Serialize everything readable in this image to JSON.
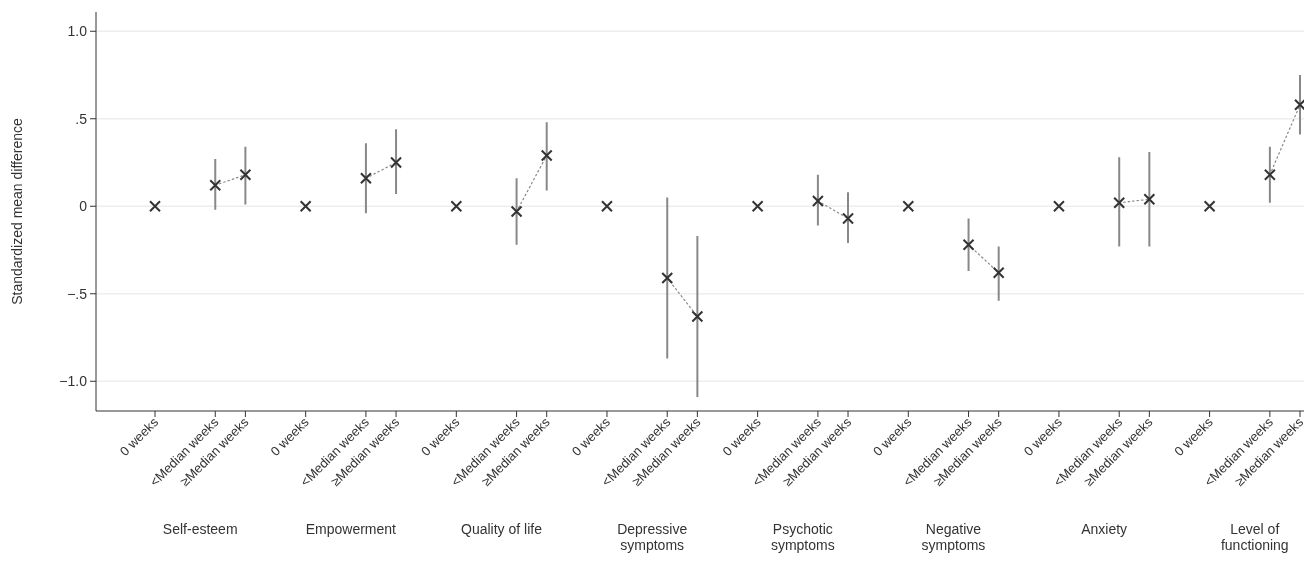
{
  "chart_data": {
    "type": "line",
    "ylabel": "Standardized mean difference",
    "categories": [
      "0 weeks",
      null,
      "<Median weeks",
      "≥Median weeks",
      null,
      "0 weeks",
      null,
      "<Median weeks",
      "≥Median weeks",
      null,
      "0 weeks",
      null,
      "<Median weeks",
      "≥Median weeks",
      null,
      "0 weeks",
      null,
      "<Median weeks",
      "≥Median weeks",
      null,
      "0 weeks",
      null,
      "<Median weeks",
      "≥Median weeks",
      null,
      "0 weeks",
      null,
      "<Median weeks",
      "≥Median weeks",
      null,
      "0 weeks",
      null,
      "<Median weeks",
      "≥Median weeks",
      null,
      "0 weeks",
      null,
      "<Median weeks",
      "≥Median weeks"
    ],
    "series": [
      {
        "color": "#333333",
        "marker": "cross",
        "line_style": "dotted",
        "values": [
          0,
          null,
          0.12,
          0.18,
          null,
          0,
          null,
          0.16,
          0.25,
          null,
          0,
          null,
          -0.03,
          0.29,
          null,
          0,
          null,
          -0.41,
          -0.63,
          null,
          0,
          null,
          0.03,
          -0.07,
          null,
          0,
          null,
          -0.22,
          -0.38,
          null,
          0,
          null,
          0.02,
          0.04,
          null,
          0,
          null,
          0.18,
          0.58
        ],
        "errors": [
          null,
          null,
          [
            -0.02,
            0.27
          ],
          [
            0.01,
            0.34
          ],
          null,
          null,
          null,
          [
            -0.04,
            0.36
          ],
          [
            0.07,
            0.44
          ],
          null,
          null,
          null,
          [
            -0.22,
            0.16
          ],
          [
            0.09,
            0.48
          ],
          null,
          null,
          null,
          [
            -0.87,
            0.05
          ],
          [
            -1.09,
            -0.17
          ],
          null,
          null,
          null,
          [
            -0.11,
            0.18
          ],
          [
            -0.21,
            0.08
          ],
          null,
          null,
          null,
          [
            -0.37,
            -0.07
          ],
          [
            -0.54,
            -0.23
          ],
          null,
          null,
          null,
          [
            -0.23,
            0.28
          ],
          [
            -0.23,
            0.31
          ],
          null,
          null,
          null,
          [
            0.02,
            0.34
          ],
          [
            0.41,
            0.75
          ]
        ]
      }
    ],
    "ylim": [
      -1.17,
      1.11
    ],
    "yticks": [
      {
        "value": 1,
        "label": "1.0"
      },
      {
        "value": 0.5,
        "label": ".5"
      },
      0,
      {
        "value": -0.5,
        "label": "−.5"
      },
      {
        "value": -1,
        "label": "−1.0"
      }
    ],
    "grid": "y",
    "annotations": [
      "Self-esteem",
      "Empowerment",
      "Quality of life",
      "Depressive symptoms",
      "Psychotic symptoms",
      "Negative symptoms",
      "Anxiety",
      "Level of functioning"
    ]
  }
}
